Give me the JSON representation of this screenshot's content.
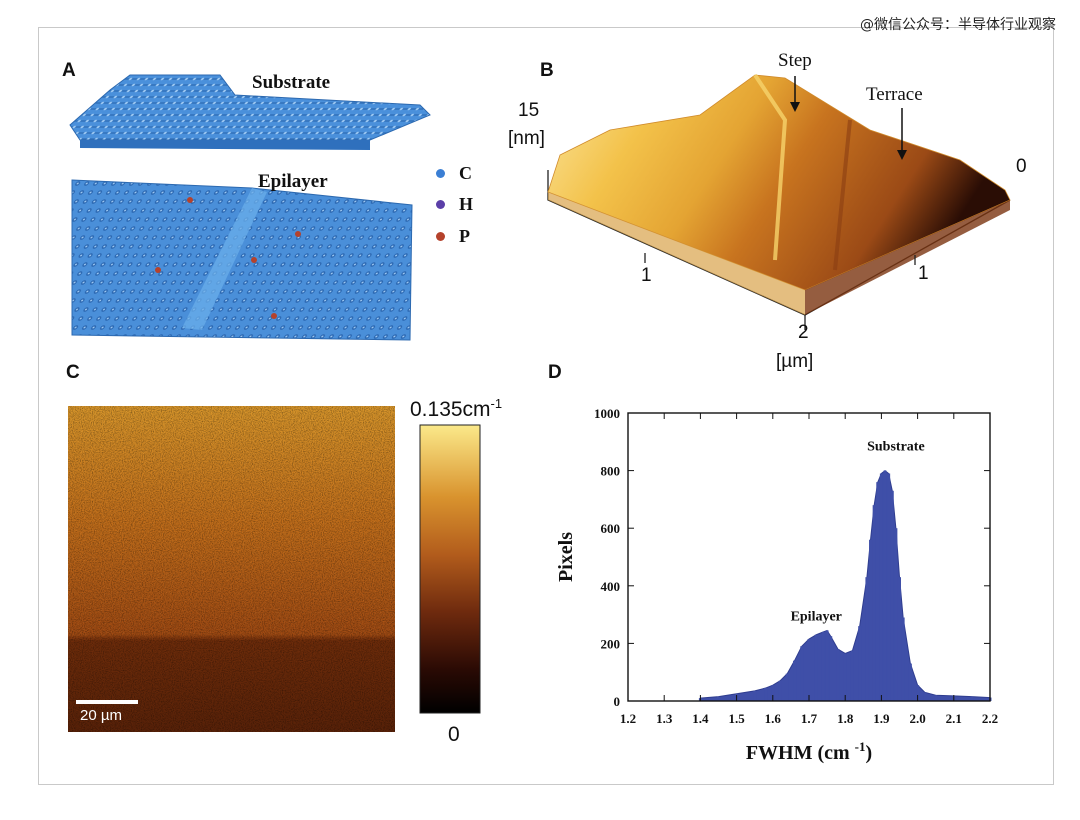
{
  "watermark": "@微信公众号：半导体行业观察",
  "panelA": {
    "label": "A",
    "substrate_label": "Substrate",
    "epilayer_label": "Epilayer",
    "legend": [
      {
        "symbol": "C",
        "color": "#3b7fd4"
      },
      {
        "symbol": "H",
        "color": "#5b3fa8"
      },
      {
        "symbol": "P",
        "color": "#b5422c"
      }
    ]
  },
  "panelB": {
    "label": "B",
    "z_max": "15",
    "z_unit": "[nm]",
    "z_min": "0",
    "step_label": "Step",
    "terrace_label": "Terrace",
    "tick_x1": "1",
    "tick_y1": "1",
    "tick_2": "2",
    "axis_unit": "[µm]"
  },
  "panelC": {
    "label": "C",
    "colorbar_max": "0.135cm",
    "colorbar_max_sup": "-1",
    "colorbar_min": "0",
    "scale_bar": "20 µm"
  },
  "panelD": {
    "label": "D"
  },
  "chart_data": {
    "type": "area",
    "title": "",
    "xlabel": "FWHM (cm",
    "xlabel_sup": "-1",
    "xlabel_close": ")",
    "ylabel": "Pixels",
    "xlim": [
      1.2,
      2.2
    ],
    "ylim": [
      0,
      1000
    ],
    "xticks": [
      "1.2",
      "1.3",
      "1.4",
      "1.5",
      "1.6",
      "1.7",
      "1.8",
      "1.9",
      "2.0",
      "2.1",
      "2.2"
    ],
    "yticks": [
      "0",
      "200",
      "400",
      "600",
      "800",
      "1000"
    ],
    "annotations": [
      {
        "text": "Substrate",
        "x": 1.94,
        "y": 870
      },
      {
        "text": "Epilayer",
        "x": 1.72,
        "y": 280
      }
    ],
    "color": "#3f4fa8",
    "series": [
      {
        "x": [
          1.4,
          1.45,
          1.5,
          1.55,
          1.58,
          1.6,
          1.62,
          1.64,
          1.66,
          1.68,
          1.7,
          1.72,
          1.74,
          1.75,
          1.76,
          1.78,
          1.8,
          1.82,
          1.84,
          1.86,
          1.87,
          1.88,
          1.89,
          1.9,
          1.91,
          1.92,
          1.93,
          1.94,
          1.95,
          1.96,
          1.98,
          2.0,
          2.02,
          2.05,
          2.1,
          2.15,
          2.2
        ],
        "values": [
          10,
          15,
          25,
          35,
          45,
          55,
          70,
          95,
          140,
          190,
          215,
          230,
          240,
          245,
          225,
          180,
          165,
          175,
          260,
          430,
          560,
          680,
          760,
          790,
          800,
          790,
          730,
          600,
          430,
          290,
          130,
          55,
          30,
          20,
          18,
          15,
          12
        ]
      }
    ]
  }
}
